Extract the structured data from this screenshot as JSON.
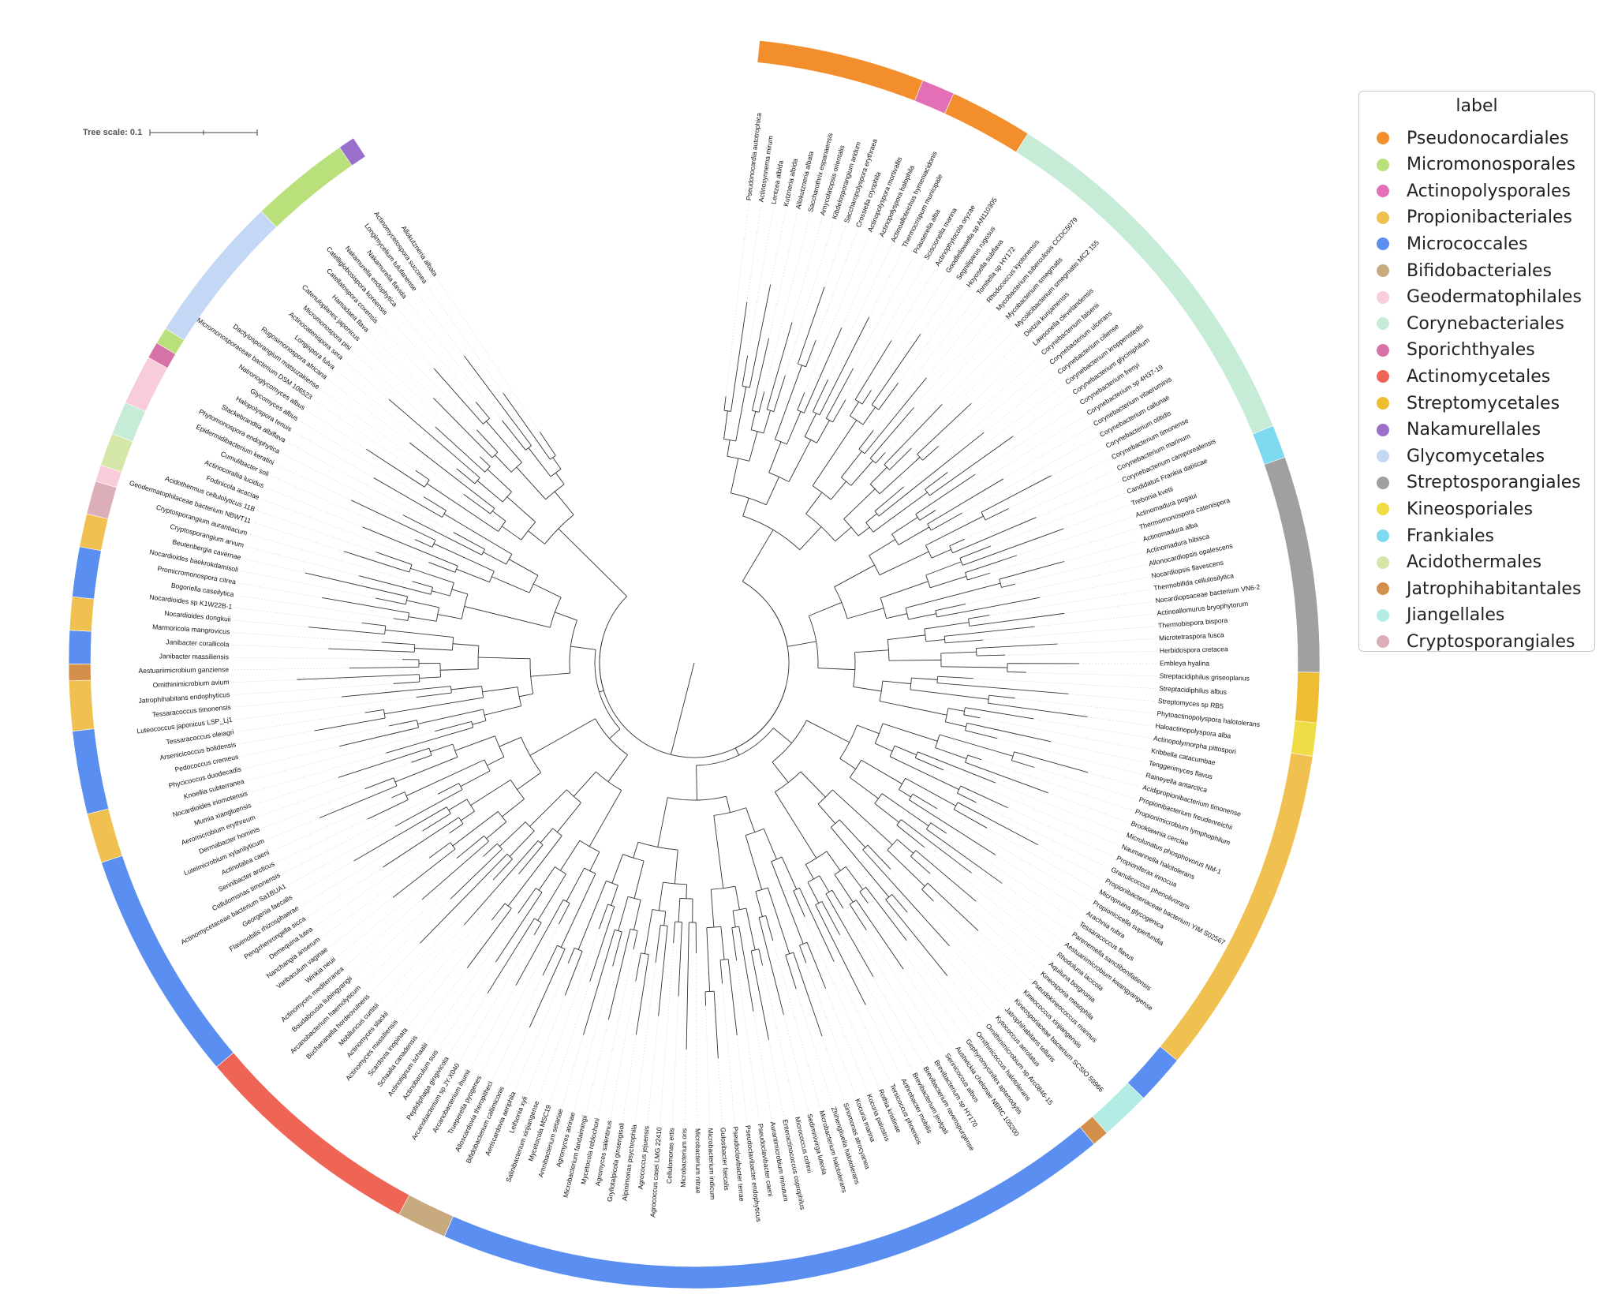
{
  "tree_scale": {
    "label": "Tree scale: 0.1"
  },
  "legend": {
    "title": "label",
    "items": [
      {
        "label": "Pseudonocardiales",
        "color": "#f28e2b"
      },
      {
        "label": "Micromonosporales",
        "color": "#b9e07a"
      },
      {
        "label": "Actinopolysporales",
        "color": "#e36fb6"
      },
      {
        "label": "Propionibacteriales",
        "color": "#f0c050"
      },
      {
        "label": "Micrococcales",
        "color": "#5a8ef0"
      },
      {
        "label": "Bifidobacteriales",
        "color": "#c8aa80"
      },
      {
        "label": "Geodermatophilales",
        "color": "#f8ccd8"
      },
      {
        "label": "Corynebacteriales",
        "color": "#c6ecd8"
      },
      {
        "label": "Sporichthyales",
        "color": "#d672a8"
      },
      {
        "label": "Actinomycetales",
        "color": "#ee6455"
      },
      {
        "label": "Streptomycetales",
        "color": "#efbd32"
      },
      {
        "label": "Nakamurellales",
        "color": "#9a70cc"
      },
      {
        "label": "Glycomycetales",
        "color": "#c4d8f6"
      },
      {
        "label": "Streptosporangiales",
        "color": "#a0a0a0"
      },
      {
        "label": "Kineosporiales",
        "color": "#eedd44"
      },
      {
        "label": "Frankiales",
        "color": "#7edaf0"
      },
      {
        "label": "Acidothermales",
        "color": "#d4e6a8"
      },
      {
        "label": "Jatrophihabitantales",
        "color": "#d4904a"
      },
      {
        "label": "Jiangellales",
        "color": "#b2ece4"
      },
      {
        "label": "Cryptosporangiales",
        "color": "#dcafb8"
      }
    ]
  },
  "tree": {
    "clades": [
      {
        "order": "Pseudonocardiales",
        "leaves": [
          "Pseudonocardia autotrophica",
          "Actinosynnema mirum",
          "Lentzea albida",
          "Kutzneria albida",
          "Allokutzneria albata",
          "Saccharothrix espanaensis",
          "Amycolatopsis orientalis",
          "Kibdelosporangium aridum",
          "Saccharopolyspora erythraea",
          "Crossiella cryophila"
        ]
      },
      {
        "order": "Actinopolysporales",
        "leaves": [
          "Actinopolyspora mortivallis",
          "Actinopolyspora halophila"
        ]
      },
      {
        "order": "Pseudonocardiales",
        "leaves": [
          "Actinoalloteichus hymeniacidonis",
          "Thermocrispum municipale",
          "Prauserella alba",
          "Sciscionella marina",
          "Actinophytocola oryzae"
        ]
      },
      {
        "order": "Corynebacteriales",
        "leaves": [
          "Goodfellowiella sp AN110305",
          "Segniliparus rugosus",
          "Hoyosella subflava",
          "Tomitella sp HY172",
          "Rhodococcus kyotonensis",
          "Mycobacterium tuberculosis CCDC5079",
          "Mycobacterium smegmatis",
          "Mycolicibacterium smegmatis MC2 155",
          "Dietzia kunjamensis",
          "Lawsonella clevelandensis",
          "Corynebacterium falsenii",
          "Corynebacterium ulcerans",
          "Corynebacterium ciliense",
          "Corynebacterium kroppenstedtii",
          "Corynebacterium glyciniphilum",
          "Corynebacterium frenyi",
          "Corynebacterium sp 4H37-19",
          "Corynebacterium vitaeruminis",
          "Corynebacterium callunae",
          "Corynebacterium otitidis",
          "Corynebacterium timonense",
          "Corynebacterium marinum",
          "Corynebacterium camporealensis"
        ]
      },
      {
        "order": "Frankiales",
        "leaves": [
          "Candidatus Frankia datiscae",
          "Trebonia kvetii"
        ]
      },
      {
        "order": "Streptosporangiales",
        "leaves": [
          "Actinomadura pogaui",
          "Thermomonospora catenispora",
          "Actinomadura alba",
          "Actinomadura hibisca",
          "Allonocardiopsis opalescens",
          "Nocardiopsis flavescens",
          "Thermobifida cellulosilytica",
          "Nocardiopsaceae bacterium VN6-2",
          "Actinoallomurus bryophytorum",
          "Thermobispora bispora",
          "Microtetraspora fusca",
          "Herbidospora cretacea",
          "Embleya hyalina"
        ]
      },
      {
        "order": "Streptomycetales",
        "leaves": [
          "Streptacidiphilus griseoplanus",
          "Streptacidiphilus albus",
          "Streptomyces sp RB5"
        ]
      },
      {
        "order": "Kineosporiales",
        "leaves": [
          "Phytoactinopolyspora halotolerans",
          "Haloactinopolyspora alba"
        ]
      },
      {
        "order": "Propionibacteriales",
        "leaves": [
          "Actinopolymorpha pittospori",
          "Kribbella catacumbae",
          "Tenggerimyces flavus",
          "Raineyella antarctica",
          "Acidipropionibacterium timonense",
          "Propionibacterium freudenreichii",
          "Propionimicrobium lymphophilum",
          "Brooklawnia cerclae",
          "Microlunatus phosphovorus NM-1",
          "Naumannella halotolerans",
          "Propioniferax innocua",
          "Granulicoccus phenolivorans",
          "Propionibacteriaceae bacterium YIM S02567",
          "Micropruina glycogenica",
          "Propionicicella superfundia",
          "Arachnia rubra",
          "Tessaracoccus flavus",
          "Parenemella sanctibonifatiensis",
          "Aestuariimicrobium kwangyangense",
          "Rhodoluna lacicola"
        ]
      },
      {
        "order": "Micrococcales",
        "leaves": [
          "Aquiluna borgnonia",
          "Kineosporia mesophila",
          "Pseudokineococcus marinus"
        ]
      },
      {
        "order": "Jiangellales",
        "leaves": [
          "Kineococcus xinjiangensis",
          "Kineosporiaceae bacterium SCSIO 59966",
          "Jatrophihabitans telluris"
        ]
      },
      {
        "order": "Jatrophihabitantales",
        "leaves": [
          "Kytococcus aerolatus"
        ]
      },
      {
        "order": "Micrococcales",
        "leaves": [
          "Ornithinimicrobium sp Arc0846-15",
          "Ornithinicoccus halotolerans",
          "Gephyromycinifex aptenodytis",
          "Austwickia chelonae NBRC 105200",
          "Serinicoccus albus",
          "Brevibacterium sp HY170",
          "Brevibacterium ravenspurgense",
          "Brevibacterium jeotgali",
          "Arthrobacter mobilis",
          "Tersicoccus phoenicis",
          "Rothia kristinae",
          "Kocuria palustris",
          "Kocuria marina",
          "Sinomonas atrocyanea",
          "Zhihengliuella halotolerans",
          "Microbacterium halotolerans",
          "Sediminivirga luteola",
          "Micrococcus cohnii",
          "Enteractinococcus coprophilus",
          "Aurantimicrobium minutum",
          "Pseudoclavibacter caeni",
          "Pseudoclavibacter endophyticus",
          "Pseudoclavibacter terrae",
          "Gulosibacter faecalis",
          "Microbacterium indicum",
          "Microbacterium nitrae",
          "Microbacterium oris",
          "Cellulomonas ertis",
          "Agrococcus casei LMG 22410",
          "Agrococcus jejuensis",
          "Alpinimonas psychrophila",
          "Gryllotalpicola ginsengisoli",
          "Agromyces salentinus",
          "Mycetocola reblochoni",
          "Microbacterium fandaimingii",
          "Agromyces atrinae",
          "Amnibacterium setariae",
          "Mycetocola MSC19",
          "Salinibacterium xinjiangense",
          "Leifsonia xyli",
          "Aeriscardovia aeriphila"
        ]
      },
      {
        "order": "Bifidobacteriales",
        "leaves": [
          "Bifidobacterium callimiconis",
          "Alloscardovia theropitheci",
          "Trueperella pyogenes"
        ]
      },
      {
        "order": "Actinomycetales",
        "leaves": [
          "Arcanobacterium ihumii",
          "Arcanobacterium sp JY-X040",
          "Peptidiphaga gingivicola",
          "Actinobaculum suis",
          "Actinotignum schaalii",
          "Schaalia canadensis",
          "Scardovia inopinata",
          "Actinomyces massiliensis",
          "Actinomyces slackii",
          "Mobiluncus curtisii",
          "Buchananella hordeovulneris",
          "Arcanobacterium haemolyticum",
          "Boudabousia liubingyangii",
          "Actinomyces mediterranea"
        ]
      },
      {
        "order": "Micrococcales",
        "leaves": [
          "Winkia neuii",
          "Varibaculum vaginae",
          "Nanchangia anserum",
          "Demequina lutea",
          "Pengzhenrongella sicca",
          "Flavimobilis rhizosphaerae",
          "Georgenia faecalis",
          "Actinomycetaceae bacterium Sa1BUA1",
          "Cellulomonas timonensis",
          "Serinibacter arcticus",
          "Actinotalea caeni",
          "Luteimicrobium xylanilyticum",
          "Dermabacter hominis",
          "Aeromicrobium erythreum"
        ]
      },
      {
        "order": "Propionibacteriales",
        "leaves": [
          "Mumia xiangluensis",
          "Nocardioides iriomotensis",
          "Knoellia subterranea"
        ]
      },
      {
        "order": "Micrococcales",
        "leaves": [
          "Phycicoccus duodecadis",
          "Pedococcus cremeus",
          "Arsenicicoccus bolidensis",
          "Tessaracoccus oleiagri",
          "Luteococcus japonicus LSP_Lj1"
        ]
      },
      {
        "order": "Propionibacteriales",
        "leaves": [
          "Tessaracoccus timonensis",
          "Jatrophihabitans endophyticus",
          "Ornithinimicrobium avium"
        ]
      },
      {
        "order": "Jatrophihabitantales",
        "leaves": [
          "Aestuariimicrobium ganziense"
        ]
      },
      {
        "order": "Micrococcales",
        "leaves": [
          "Janibacter massiliensis",
          "Janibacter corallicola"
        ]
      },
      {
        "order": "Propionibacteriales",
        "leaves": [
          "Marmoricola mangrovicus",
          "Nocardioides dongkuii"
        ]
      },
      {
        "order": "Micrococcales",
        "leaves": [
          "Nocardioides sp K1W22B-1",
          "Bogoriella caseilytica",
          "Promicromonospora citrea"
        ]
      },
      {
        "order": "Propionibacteriales",
        "leaves": [
          "Nocardioides baekrokdamisoli",
          "Beutenbergia cavernae"
        ]
      },
      {
        "order": "Micrococcales",
        "leaves": []
      },
      {
        "order": "Cryptosporangiales",
        "leaves": [
          "Cryptosporangium arvum",
          "Cryptosporangium aurantiacum"
        ]
      },
      {
        "order": "Geodermatophilales",
        "leaves": [
          "Geodermatophilaceae bacterium NBWT11"
        ]
      },
      {
        "order": "Acidothermales",
        "leaves": [
          "Acidothermus cellulolyticus 11B",
          "Fodinicola acaciae"
        ]
      },
      {
        "order": "Corynebacteriales",
        "leaves": [
          "Actinocorallia lucidus",
          "Cumulibacter soli"
        ]
      },
      {
        "order": "Geodermatophilales",
        "leaves": [
          "Epidermidibacterium keratini",
          "Phytomonospora endophytica",
          "Stackebrandtia albiflava"
        ]
      },
      {
        "order": "Sporichthyales",
        "leaves": [
          "Halopolyspora tenuis"
        ]
      },
      {
        "order": "Micromonosporales",
        "leaves": [
          "Glycomyces albus"
        ]
      },
      {
        "order": "Glycomycetales",
        "leaves": [
          "Natronoglycomyces albus",
          "Micromonosporaceae bacterium DSM 106523",
          "Dactylosporangium matsuzakiense",
          "Rugosimonospora africana",
          "Longispora fulva",
          "Actinocatenispora sera",
          "Micromonospora pisi",
          "Catenuloplanes japonicus",
          "Hamadaea flava"
        ]
      },
      {
        "order": "Micromonosporales",
        "leaves": [
          "Catellatospora coxensis",
          "Catelliglobosispora koreensis",
          "Nakamurella endophytica",
          "Nakamurella flavida",
          "Longimycelium tulufanense",
          "Actinomycetospora succinea"
        ]
      },
      {
        "order": "Nakamurellales",
        "leaves": [
          "Allokutzneria albata"
        ]
      }
    ]
  }
}
